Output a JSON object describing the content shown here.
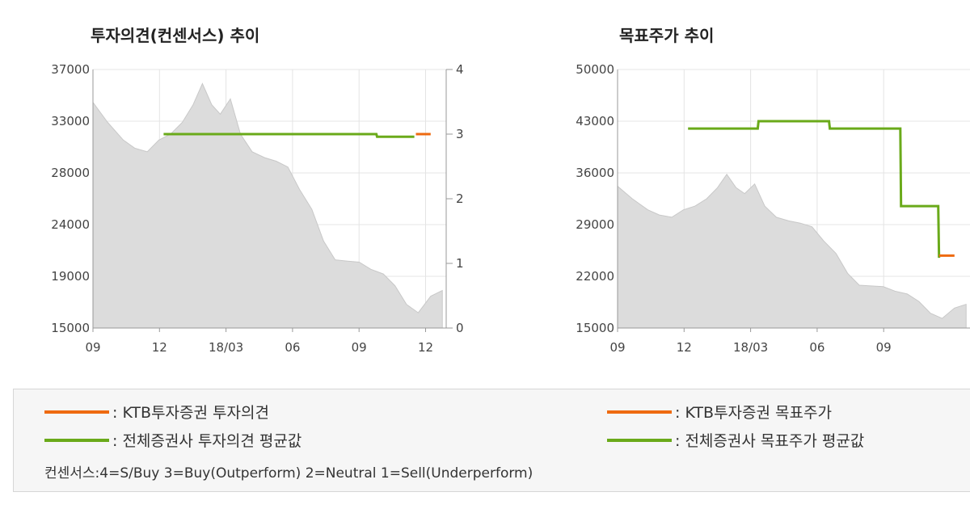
{
  "colors": {
    "ktb": "#ee6a10",
    "average": "#6aaa1a",
    "price_area": "#dcdcdc",
    "grid": "#e4e4e4",
    "axis": "#999999"
  },
  "legend": {
    "left": {
      "ktb_label": ": KTB투자증권  투자의견",
      "avg_label": ": 전체증권사  투자의견  평균값"
    },
    "right": {
      "ktb_label": ": KTB투자증권  목표주가",
      "avg_label": ": 전체증권사  목표주가  평균값"
    },
    "consensus_note": "컨센서스:4=S/Buy     3=Buy(Outperform)  2=Neutral   1=Sell(Underperform)"
  },
  "chart_data": [
    {
      "type": "area",
      "title": "투자의견(컨센서스) 추이",
      "x_tick_labels": [
        "09",
        "12",
        "18/03",
        "06",
        "09",
        "12"
      ],
      "y_tick_labels": [
        "37000",
        "33000",
        "28000",
        "24000",
        "19000",
        "15000"
      ],
      "y2_tick_labels": [
        "4",
        "3",
        "2",
        "1",
        "0"
      ],
      "ylim": [
        15000,
        37000
      ],
      "y2lim": [
        0,
        4
      ],
      "grid": true,
      "series": [
        {
          "kind": "price_area",
          "x": [
            "2017-09-01",
            "2017-09-20",
            "2017-10-10",
            "2017-10-25",
            "2017-11-10",
            "2017-11-25",
            "2017-12-10",
            "2017-12-25",
            "2018-01-08",
            "2018-01-20",
            "2018-02-01",
            "2018-02-12",
            "2018-02-25",
            "2018-03-10",
            "2018-03-25",
            "2018-04-10",
            "2018-04-25",
            "2018-05-10",
            "2018-05-25",
            "2018-06-10",
            "2018-06-25",
            "2018-07-10",
            "2018-07-25",
            "2018-08-10",
            "2018-08-25",
            "2018-09-10",
            "2018-09-25",
            "2018-10-10",
            "2018-10-25",
            "2018-11-10",
            "2018-11-25"
          ],
          "values": [
            34200,
            32500,
            31000,
            30300,
            30000,
            31000,
            31500,
            32500,
            34000,
            35800,
            34000,
            33200,
            34500,
            31500,
            30000,
            29500,
            29200,
            28700,
            26800,
            25100,
            22400,
            20800,
            20700,
            20600,
            20000,
            19600,
            18600,
            17000,
            16300,
            17700,
            18200
          ]
        },
        {
          "kind": "consensus_average",
          "x": [
            "2017-12-01",
            "2018-09-01",
            "2018-09-02",
            "2018-10-20"
          ],
          "values": [
            3.0,
            3.0,
            2.96,
            2.96
          ]
        },
        {
          "kind": "ktb_opinion",
          "x": [
            "2018-10-22",
            "2018-11-10"
          ],
          "values": [
            3.0,
            3.0
          ]
        }
      ]
    },
    {
      "type": "area",
      "title": "목표주가 추이",
      "x_tick_labels": [
        "09",
        "12",
        "18/03",
        "06",
        "09"
      ],
      "y_tick_labels": [
        "50000",
        "43000",
        "36000",
        "29000",
        "22000",
        "15000"
      ],
      "ylim": [
        15000,
        50000
      ],
      "grid": true,
      "series": [
        {
          "kind": "price_area",
          "x": [
            "2017-09-01",
            "2017-09-20",
            "2017-10-10",
            "2017-10-25",
            "2017-11-10",
            "2017-11-25",
            "2017-12-10",
            "2017-12-25",
            "2018-01-08",
            "2018-01-20",
            "2018-02-01",
            "2018-02-12",
            "2018-02-25",
            "2018-03-10",
            "2018-03-25",
            "2018-04-10",
            "2018-04-25",
            "2018-05-10",
            "2018-05-25",
            "2018-06-10",
            "2018-06-25",
            "2018-07-10",
            "2018-07-25",
            "2018-08-10",
            "2018-08-25",
            "2018-09-10",
            "2018-09-25",
            "2018-10-10",
            "2018-10-25",
            "2018-11-10",
            "2018-11-25"
          ],
          "values": [
            34200,
            32500,
            31000,
            30300,
            30000,
            31000,
            31500,
            32500,
            34000,
            35800,
            34000,
            33200,
            34500,
            31500,
            30000,
            29500,
            29200,
            28700,
            26800,
            25100,
            22400,
            20800,
            20700,
            20600,
            20000,
            19600,
            18600,
            17000,
            16300,
            17700,
            18200
          ]
        },
        {
          "kind": "target_average",
          "x": [
            "2017-12-01",
            "2018-03-01",
            "2018-03-02",
            "2018-06-01",
            "2018-06-02",
            "2018-09-01",
            "2018-09-02",
            "2018-10-20",
            "2018-10-21"
          ],
          "values": [
            42000,
            42000,
            43000,
            43000,
            42000,
            42000,
            31500,
            31500,
            24500
          ]
        },
        {
          "kind": "ktb_target",
          "x": [
            "2018-10-21",
            "2018-11-10"
          ],
          "values": [
            24800,
            24800
          ]
        }
      ]
    }
  ]
}
